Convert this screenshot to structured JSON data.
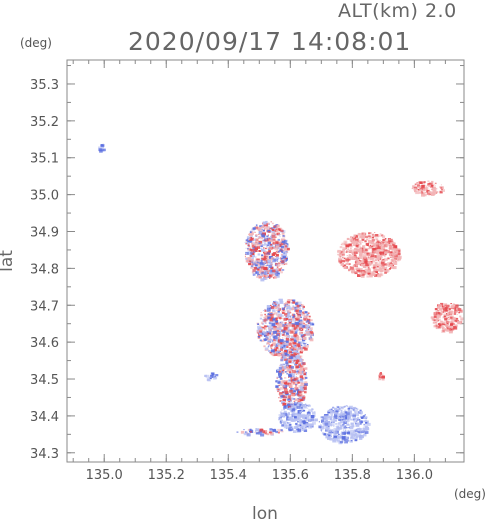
{
  "header": {
    "altitude": "ALT(km) 2.0",
    "timestamp": "2020/09/17 14:08:01",
    "unit_top_left": "(deg)",
    "unit_bottom_right": "(deg)"
  },
  "axes": {
    "x_label": "lon",
    "y_label": "lat",
    "x_ticks": [
      "135.0",
      "135.2",
      "135.4",
      "135.6",
      "135.8",
      "136.0"
    ],
    "y_ticks": [
      "35.3",
      "35.2",
      "35.1",
      "35.0",
      "34.9",
      "34.8",
      "34.7",
      "34.6",
      "34.5",
      "34.4",
      "34.3"
    ]
  },
  "map": {
    "lon_range": [
      134.88,
      136.16
    ],
    "lat_range": [
      34.275,
      35.365
    ],
    "colors": {
      "red": "#e5484d",
      "pink": "#f2b3b5",
      "blue": "#5b6fe0",
      "lightblue": "#b7c0f2"
    },
    "echo_clusters": [
      {
        "name": "cluster-tiny-nw",
        "lon": 134.99,
        "lat": 35.13,
        "rlon": 0.01,
        "rlat": 0.012,
        "mix": "blue"
      },
      {
        "name": "cluster-ne",
        "lon": 136.04,
        "lat": 35.02,
        "rlon": 0.05,
        "rlat": 0.02,
        "mix": "red"
      },
      {
        "name": "cluster-north-center",
        "lon": 135.85,
        "lat": 34.84,
        "rlon": 0.1,
        "rlat": 0.06,
        "mix": "red"
      },
      {
        "name": "cluster-nw-scattered",
        "lon": 135.52,
        "lat": 34.85,
        "rlon": 0.07,
        "rlat": 0.08,
        "mix": "mixed"
      },
      {
        "name": "cluster-east",
        "lon": 136.1,
        "lat": 34.67,
        "rlon": 0.05,
        "rlat": 0.04,
        "mix": "pink"
      },
      {
        "name": "cluster-main",
        "lon": 135.58,
        "lat": 34.64,
        "rlon": 0.09,
        "rlat": 0.08,
        "mix": "mixed"
      },
      {
        "name": "cluster-south-central",
        "lon": 135.6,
        "lat": 34.5,
        "rlon": 0.05,
        "rlat": 0.08,
        "mix": "mixed"
      },
      {
        "name": "cluster-southwest-small",
        "lon": 135.34,
        "lat": 34.51,
        "rlon": 0.02,
        "rlat": 0.01,
        "mix": "blue"
      },
      {
        "name": "cluster-south-blue",
        "lon": 135.77,
        "lat": 34.38,
        "rlon": 0.08,
        "rlat": 0.05,
        "mix": "lightblue"
      },
      {
        "name": "cluster-south-mid",
        "lon": 135.62,
        "lat": 34.4,
        "rlon": 0.06,
        "rlat": 0.04,
        "mix": "lightblue"
      },
      {
        "name": "cluster-south-strip",
        "lon": 135.5,
        "lat": 34.36,
        "rlon": 0.08,
        "rlat": 0.008,
        "mix": "mixed"
      },
      {
        "name": "cluster-mid-east-tiny",
        "lon": 135.89,
        "lat": 34.51,
        "rlon": 0.01,
        "rlat": 0.01,
        "mix": "red"
      }
    ]
  }
}
